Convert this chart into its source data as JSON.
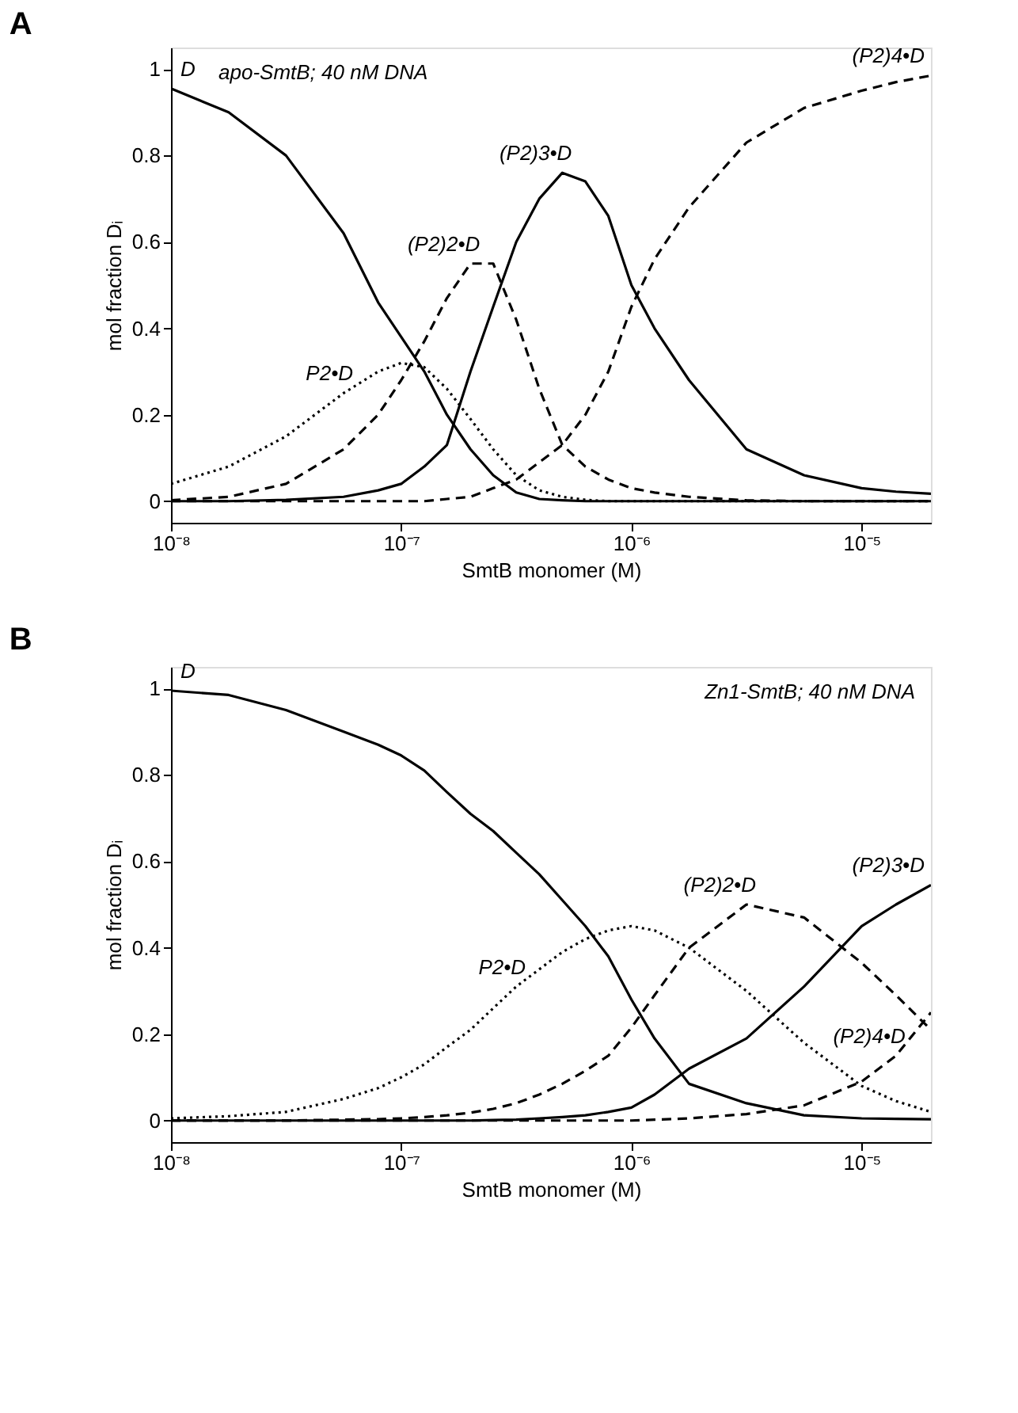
{
  "chart_data": [
    {
      "type": "line",
      "title": "A",
      "xlabel": "SmtB monomer (M)",
      "ylabel": "mol fraction Dᵢ",
      "log": "x",
      "grid": false,
      "legend": false,
      "marker": "none",
      "annotations": [
        "apo-SmtB; 40 nM DNA"
      ],
      "x": [
        1e-08,
        1.78e-08,
        3.16e-08,
        5.62e-08,
        7.94e-08,
        1e-07,
        1.26e-07,
        1.58e-07,
        2e-07,
        2.51e-07,
        3.16e-07,
        3.98e-07,
        5.01e-07,
        6.31e-07,
        7.94e-07,
        1e-06,
        1.26e-06,
        1.78e-06,
        3.16e-06,
        5.62e-06,
        1e-05,
        1.41e-05,
        2e-05
      ],
      "xlim": [
        1e-08,
        2e-05
      ],
      "xticks": [
        {
          "value": 1e-08,
          "label": "10⁻⁸"
        },
        {
          "value": 1e-07,
          "label": "10⁻⁷"
        },
        {
          "value": 1e-06,
          "label": "10⁻⁶"
        },
        {
          "value": 1e-05,
          "label": "10⁻⁵"
        }
      ],
      "ylim": [
        -0.05,
        1.05
      ],
      "yticks": [
        0,
        0.2,
        0.4,
        0.6,
        0.8,
        1
      ],
      "series": [
        {
          "name": "D",
          "color": "#000000",
          "line_style": "solid",
          "values": [
            0.955,
            0.9,
            0.8,
            0.62,
            0.46,
            0.38,
            0.3,
            0.2,
            0.12,
            0.06,
            0.02,
            0.005,
            0.002,
            0,
            0,
            0,
            0,
            0,
            0,
            0,
            0,
            0,
            0
          ]
        },
        {
          "name": "P2•D",
          "color": "#000000",
          "line_style": "dotted",
          "values": [
            0.04,
            0.08,
            0.15,
            0.25,
            0.3,
            0.32,
            0.31,
            0.26,
            0.19,
            0.12,
            0.06,
            0.025,
            0.01,
            0.003,
            0,
            0,
            0,
            0,
            0,
            0,
            0,
            0,
            0
          ]
        },
        {
          "name": "(P2)2•D",
          "color": "#000000",
          "line_style": "dashed",
          "values": [
            0.002,
            0.01,
            0.04,
            0.12,
            0.2,
            0.28,
            0.37,
            0.47,
            0.55,
            0.55,
            0.42,
            0.26,
            0.13,
            0.08,
            0.05,
            0.03,
            0.02,
            0.01,
            0.002,
            0,
            0,
            0,
            0
          ]
        },
        {
          "name": "(P2)3•D",
          "color": "#000000",
          "line_style": "solid",
          "values": [
            0,
            0,
            0.003,
            0.01,
            0.025,
            0.04,
            0.08,
            0.13,
            0.3,
            0.45,
            0.6,
            0.7,
            0.76,
            0.74,
            0.66,
            0.5,
            0.4,
            0.28,
            0.12,
            0.06,
            0.03,
            0.022,
            0.017
          ]
        },
        {
          "name": "(P2)4•D",
          "color": "#000000",
          "line_style": "dashed",
          "values": [
            0,
            0,
            0,
            0,
            0,
            0,
            0,
            0.005,
            0.01,
            0.03,
            0.05,
            0.09,
            0.13,
            0.2,
            0.3,
            0.45,
            0.56,
            0.68,
            0.83,
            0.91,
            0.95,
            0.97,
            0.985
          ]
        }
      ]
    },
    {
      "type": "line",
      "title": "B",
      "xlabel": "SmtB monomer (M)",
      "ylabel": "mol fraction Dᵢ",
      "log": "x",
      "grid": false,
      "legend": false,
      "marker": "none",
      "annotations": [
        "Zn1-SmtB; 40 nM DNA"
      ],
      "x": [
        1e-08,
        1.78e-08,
        3.16e-08,
        5.62e-08,
        7.94e-08,
        1e-07,
        1.26e-07,
        1.58e-07,
        2e-07,
        2.51e-07,
        3.16e-07,
        3.98e-07,
        5.01e-07,
        6.31e-07,
        7.94e-07,
        1e-06,
        1.26e-06,
        1.78e-06,
        3.16e-06,
        5.62e-06,
        1e-05,
        1.41e-05,
        2e-05
      ],
      "xlim": [
        1e-08,
        2e-05
      ],
      "xticks": [
        {
          "value": 1e-08,
          "label": "10⁻⁸"
        },
        {
          "value": 1e-07,
          "label": "10⁻⁷"
        },
        {
          "value": 1e-06,
          "label": "10⁻⁶"
        },
        {
          "value": 1e-05,
          "label": "10⁻⁵"
        }
      ],
      "ylim": [
        -0.05,
        1.05
      ],
      "yticks": [
        0,
        0.2,
        0.4,
        0.6,
        0.8,
        1
      ],
      "series": [
        {
          "name": "D",
          "color": "#000000",
          "line_style": "solid",
          "values": [
            0.995,
            0.985,
            0.95,
            0.9,
            0.87,
            0.845,
            0.81,
            0.76,
            0.71,
            0.67,
            0.62,
            0.57,
            0.51,
            0.45,
            0.38,
            0.28,
            0.19,
            0.085,
            0.04,
            0.012,
            0.005,
            0.004,
            0.003
          ]
        },
        {
          "name": "P2•D",
          "color": "#000000",
          "line_style": "dotted",
          "values": [
            0.005,
            0.01,
            0.02,
            0.05,
            0.075,
            0.1,
            0.13,
            0.17,
            0.21,
            0.26,
            0.31,
            0.35,
            0.39,
            0.42,
            0.44,
            0.45,
            0.44,
            0.4,
            0.3,
            0.18,
            0.08,
            0.045,
            0.02
          ]
        },
        {
          "name": "(P2)2•D",
          "color": "#000000",
          "line_style": "dashed",
          "values": [
            0,
            0,
            0,
            0.002,
            0.003,
            0.005,
            0.008,
            0.012,
            0.018,
            0.027,
            0.04,
            0.06,
            0.085,
            0.115,
            0.15,
            0.215,
            0.29,
            0.4,
            0.5,
            0.47,
            0.365,
            0.29,
            0.21
          ]
        },
        {
          "name": "(P2)3•D",
          "color": "#000000",
          "line_style": "solid",
          "values": [
            0,
            0,
            0,
            0,
            0,
            0,
            0,
            0,
            0,
            0.001,
            0.002,
            0.005,
            0.008,
            0.012,
            0.02,
            0.03,
            0.06,
            0.12,
            0.19,
            0.31,
            0.45,
            0.5,
            0.545
          ]
        },
        {
          "name": "(P2)4•D",
          "color": "#000000",
          "line_style": "dashed",
          "values": [
            0,
            0,
            0,
            0,
            0,
            0,
            0,
            0,
            0,
            0,
            0,
            0,
            0,
            0,
            0,
            0,
            0.002,
            0.005,
            0.015,
            0.035,
            0.09,
            0.15,
            0.25
          ]
        }
      ]
    }
  ]
}
